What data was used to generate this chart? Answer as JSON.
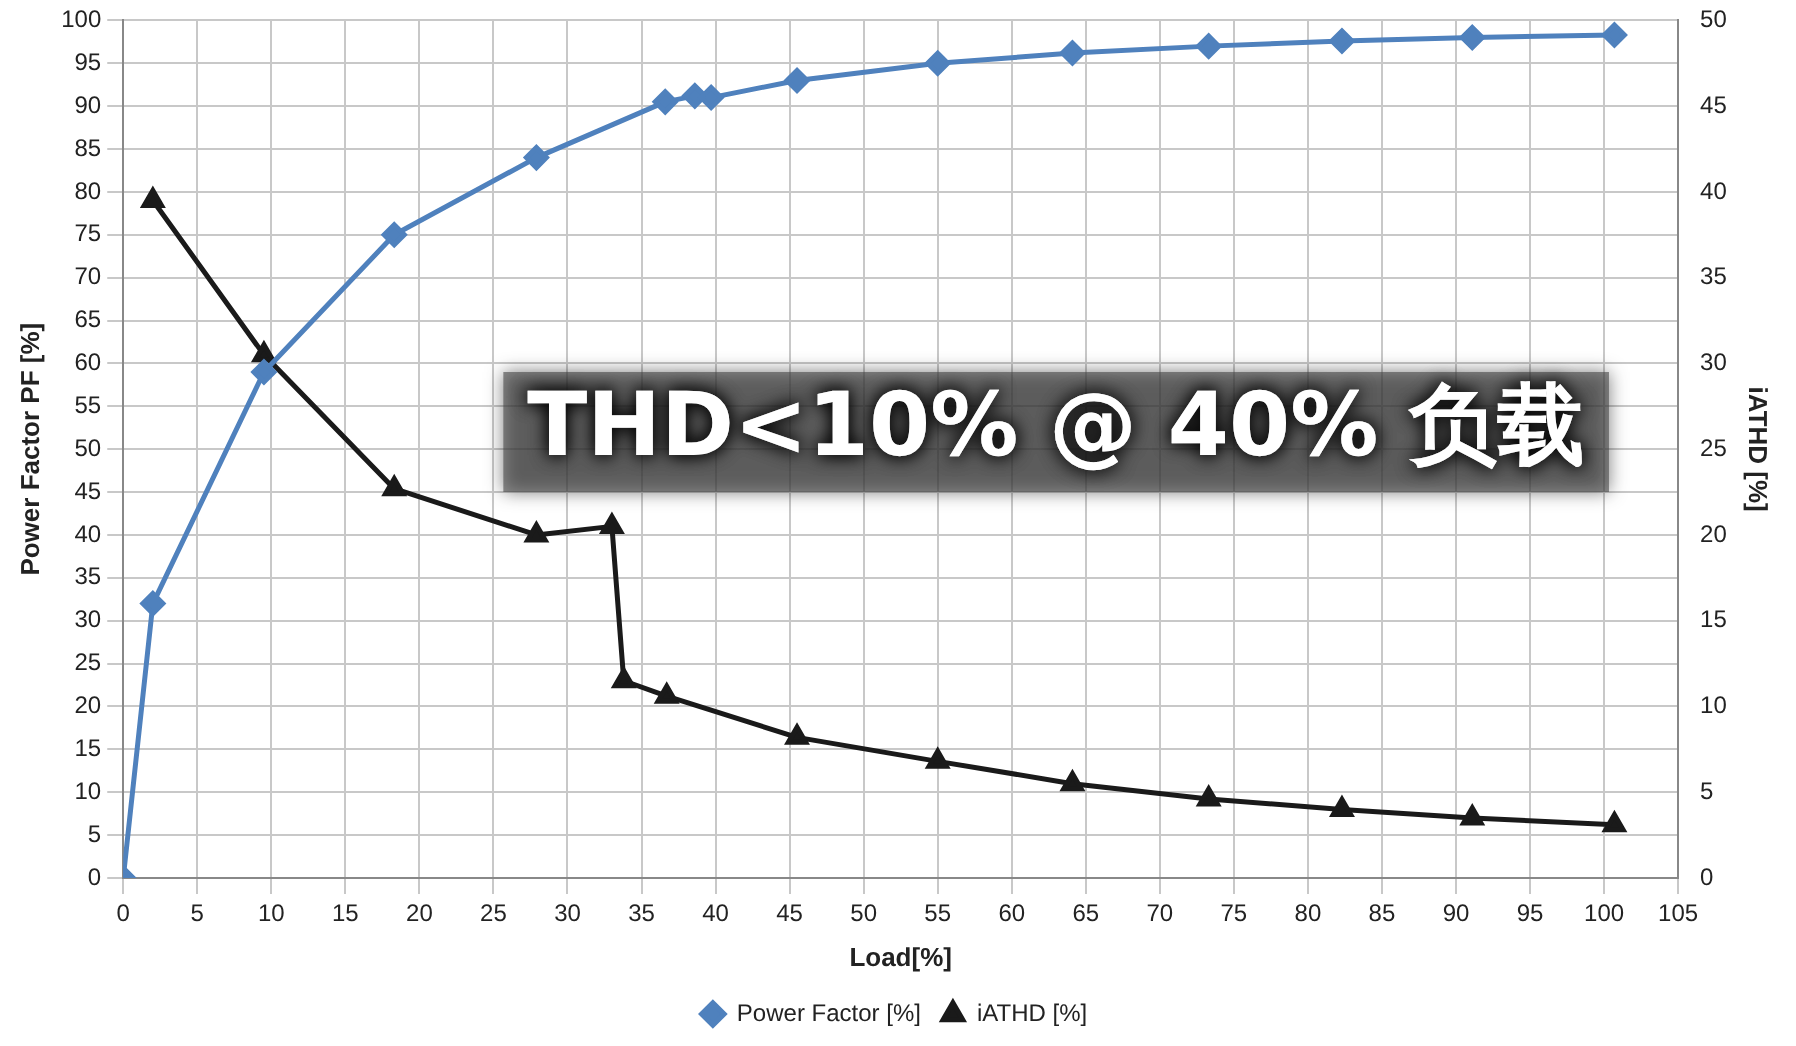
{
  "chart_data": {
    "type": "line",
    "xlabel": "Load[%]",
    "ylabel": "Power Factor PF [%]",
    "y2label": "iATHD [%]",
    "xlim": [
      0,
      105
    ],
    "xticks": [
      0,
      5,
      10,
      15,
      20,
      25,
      30,
      35,
      40,
      45,
      50,
      55,
      60,
      65,
      70,
      75,
      80,
      85,
      90,
      95,
      100,
      105
    ],
    "ylim": [
      0,
      100
    ],
    "yticks": [
      0,
      5,
      10,
      15,
      20,
      25,
      30,
      35,
      40,
      45,
      50,
      55,
      60,
      65,
      70,
      75,
      80,
      85,
      90,
      95,
      100
    ],
    "y2lim": [
      0,
      50
    ],
    "y2ticks": [
      0,
      5,
      10,
      15,
      20,
      25,
      30,
      35,
      40,
      45,
      50
    ],
    "grid": true,
    "legend": "bottom",
    "line_style": "solid",
    "annotations": [
      "THD<10% @ 40% 负载"
    ],
    "series": [
      {
        "name": "Power Factor [%]",
        "color": "#4f81bd",
        "marker": "diamond",
        "x": [
          0,
          2,
          9.5,
          18.3,
          27.9,
          36.6,
          38.6,
          39.7,
          45.5,
          55,
          64.1,
          73.3,
          82.3,
          91.1,
          100.7
        ],
        "values": [
          0,
          32,
          59,
          75,
          84,
          90.5,
          91.2,
          91,
          93,
          95,
          96.2,
          97,
          97.6,
          98,
          98.3
        ]
      },
      {
        "name": "iATHD [%]",
        "color": "#1a1a1a",
        "marker": "triangle",
        "axis": "y2",
        "x": [
          2,
          9.5,
          18.3,
          27.9,
          33,
          33.8,
          36.7,
          45.5,
          55,
          64.1,
          73.3,
          82.3,
          91.1,
          100.7
        ],
        "values": [
          39.5,
          30.5,
          22.7,
          20,
          20.5,
          11.5,
          10.6,
          8.2,
          6.8,
          5.5,
          4.6,
          4,
          3.5,
          3.1
        ]
      }
    ]
  }
}
